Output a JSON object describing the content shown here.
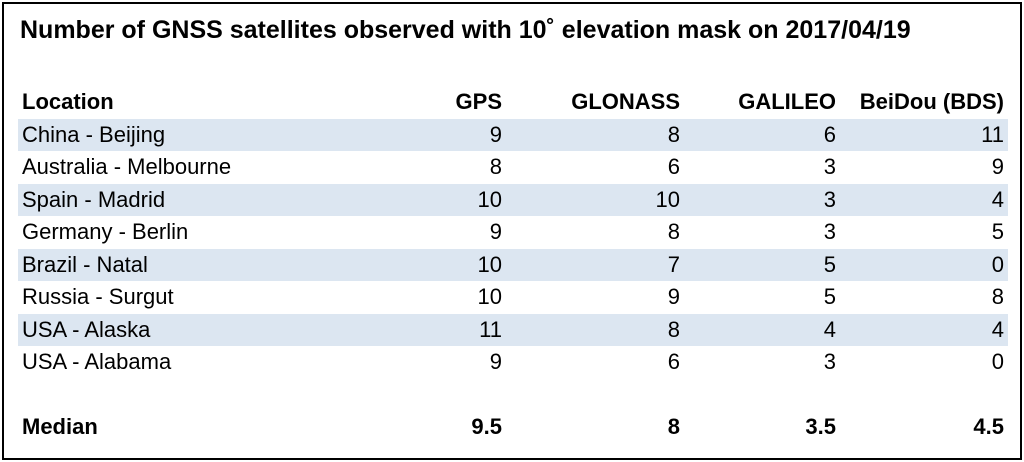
{
  "title": "Number of GNSS satellites observed with 10˚ elevation mask on 2017/04/19",
  "headers": {
    "location": "Location",
    "gps": "GPS",
    "glonass": "GLONASS",
    "galileo": "GALILEO",
    "beidou": "BeiDou (BDS)"
  },
  "rows": [
    {
      "location": "China - Beijing",
      "gps": "9",
      "glonass": "8",
      "galileo": "6",
      "beidou": "11"
    },
    {
      "location": "Australia - Melbourne",
      "gps": "8",
      "glonass": "6",
      "galileo": "3",
      "beidou": "9"
    },
    {
      "location": "Spain - Madrid",
      "gps": "10",
      "glonass": "10",
      "galileo": "3",
      "beidou": "4"
    },
    {
      "location": "Germany - Berlin",
      "gps": "9",
      "glonass": "8",
      "galileo": "3",
      "beidou": "5"
    },
    {
      "location": "Brazil - Natal",
      "gps": "10",
      "glonass": "7",
      "galileo": "5",
      "beidou": "0"
    },
    {
      "location": "Russia - Surgut",
      "gps": "10",
      "glonass": "9",
      "galileo": "5",
      "beidou": "8"
    },
    {
      "location": "USA - Alaska",
      "gps": "11",
      "glonass": "8",
      "galileo": "4",
      "beidou": "4"
    },
    {
      "location": "USA - Alabama",
      "gps": "9",
      "glonass": "6",
      "galileo": "3",
      "beidou": "0"
    }
  ],
  "median": {
    "label": "Median",
    "gps": "9.5",
    "glonass": "8",
    "galileo": "3.5",
    "beidou": "4.5"
  },
  "colors": {
    "row_shade": "#dce6f1",
    "border": "#000000"
  }
}
